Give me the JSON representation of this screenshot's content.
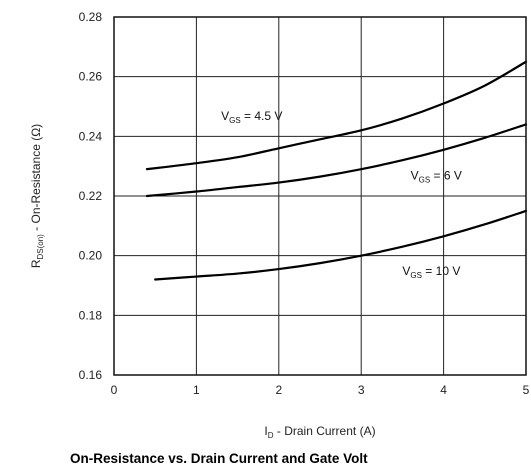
{
  "chart_data": {
    "type": "line",
    "title": "On-Resistance vs. Drain Current and Gate Volt",
    "xlabel": {
      "main": "I",
      "sub": "D",
      "rest": " - Drain Current (A)"
    },
    "ylabel": {
      "main": "R",
      "sub": "DS(on)",
      "rest": " - On-Resistance (Ω)"
    },
    "xlim": [
      0,
      5
    ],
    "ylim": [
      0.16,
      0.28
    ],
    "xticks": [
      0,
      1,
      2,
      3,
      4,
      5
    ],
    "xtick_labels": [
      "0",
      "1",
      "2",
      "3",
      "4",
      "5"
    ],
    "yticks": [
      0.16,
      0.18,
      0.2,
      0.22,
      0.24,
      0.26,
      0.28
    ],
    "ytick_labels": [
      "0.16",
      "0.18",
      "0.20",
      "0.22",
      "0.24",
      "0.26",
      "0.28"
    ],
    "grid": true,
    "series": [
      {
        "name": {
          "main": "V",
          "sub": "GS",
          "rest": " = 4.5 V"
        },
        "x": [
          0.4,
          1.0,
          1.5,
          2.0,
          2.5,
          3.0,
          3.5,
          4.0,
          4.5,
          5.0
        ],
        "y": [
          0.229,
          0.231,
          0.233,
          0.236,
          0.239,
          0.242,
          0.246,
          0.251,
          0.257,
          0.265
        ]
      },
      {
        "name": {
          "main": "V",
          "sub": "GS",
          "rest": " = 6 V"
        },
        "x": [
          0.4,
          1.0,
          1.5,
          2.0,
          2.5,
          3.0,
          3.5,
          4.0,
          4.5,
          5.0
        ],
        "y": [
          0.22,
          0.2215,
          0.223,
          0.2245,
          0.2265,
          0.229,
          0.232,
          0.2355,
          0.2395,
          0.244
        ]
      },
      {
        "name": {
          "main": "V",
          "sub": "GS",
          "rest": " = 10 V"
        },
        "x": [
          0.5,
          1.0,
          1.5,
          2.0,
          2.5,
          3.0,
          3.5,
          4.0,
          4.5,
          5.0
        ],
        "y": [
          0.192,
          0.193,
          0.194,
          0.1955,
          0.1975,
          0.2,
          0.203,
          0.2065,
          0.2105,
          0.215
        ]
      }
    ]
  }
}
